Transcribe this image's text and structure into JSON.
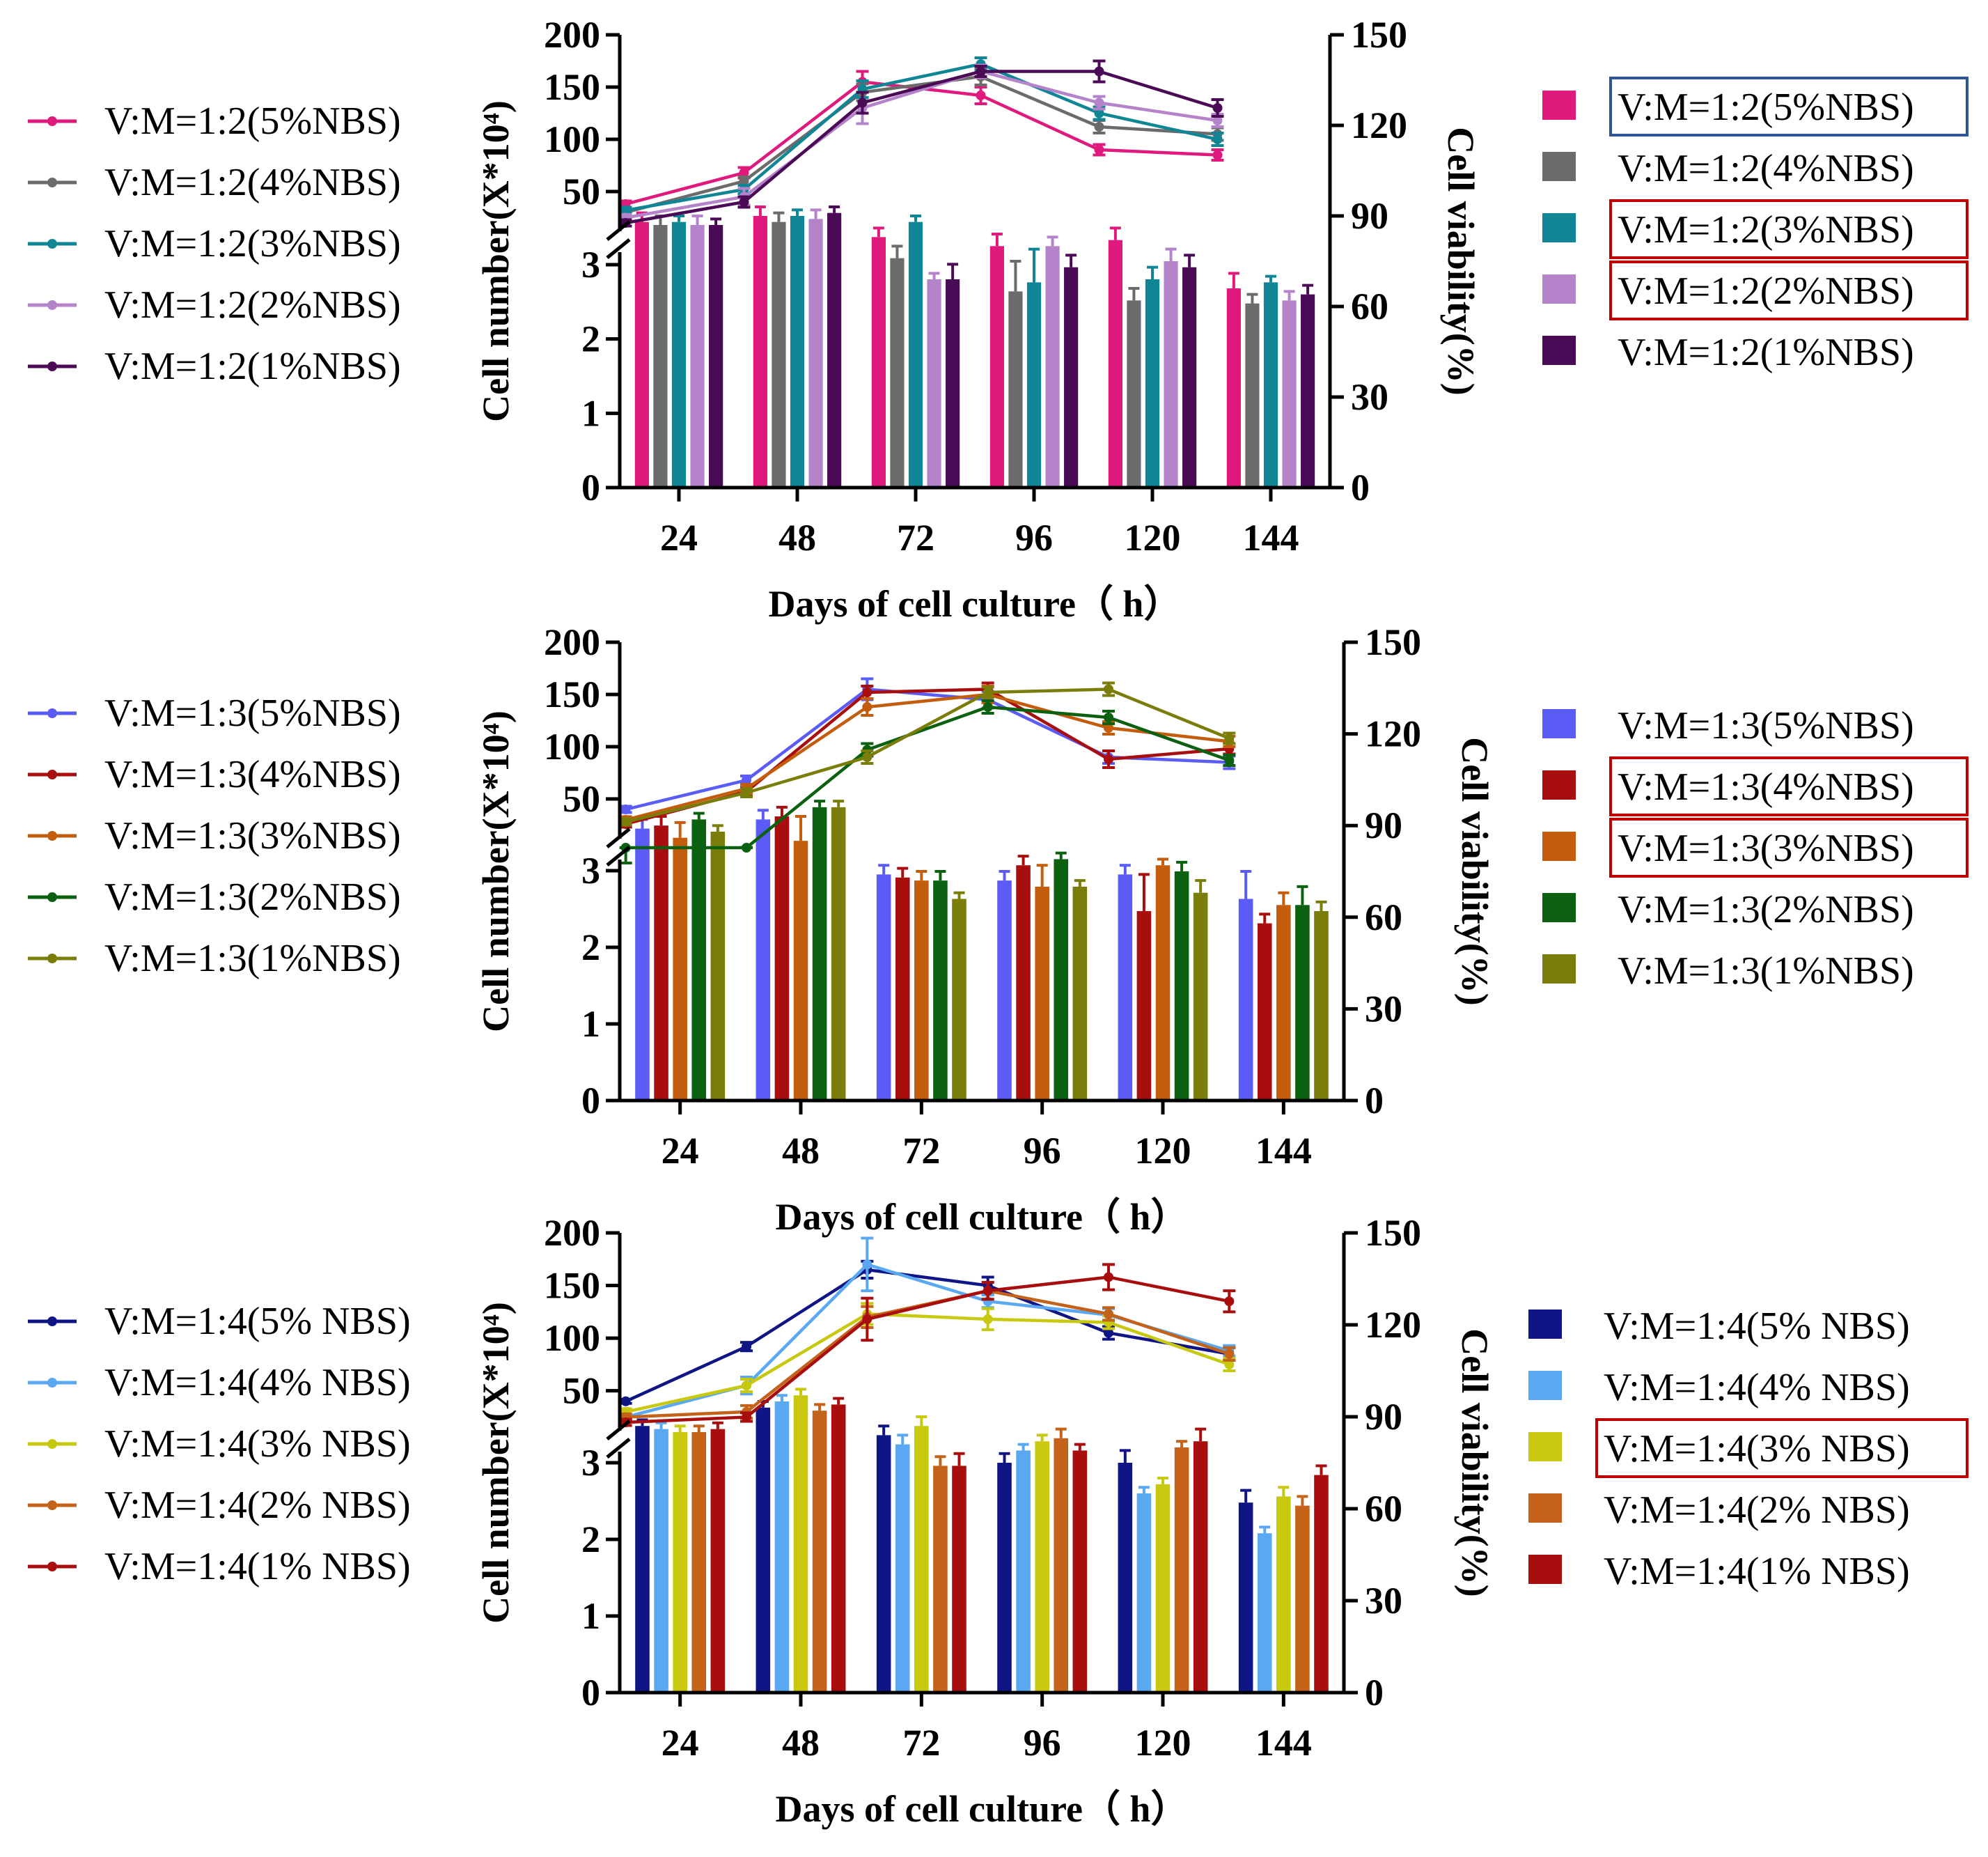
{
  "chart_data": [
    {
      "type": "bar+line",
      "title": "",
      "xlabel": "Days of cell culture（ h）",
      "ylabel_left": "Cell number(X*10⁴)",
      "ylabel_right": "Cell viability(%)",
      "categories": [
        "24",
        "48",
        "72",
        "96",
        "120",
        "144"
      ],
      "left_axis_upper_ticks": [
        "200",
        "150",
        "100",
        "50"
      ],
      "left_axis_lower_ticks": [
        "3",
        "2",
        "1",
        "0"
      ],
      "right_axis_ticks": [
        "150",
        "120",
        "90",
        "60",
        "30",
        "0"
      ],
      "line_legend": [
        "V:M=1:2(5%NBS)",
        "V:M=1:2(4%NBS)",
        "V:M=1:2(3%NBS)",
        "V:M=1:2(2%NBS)",
        "V:M=1:2(1%NBS)"
      ],
      "bar_legend": [
        "V:M=1:2(5%NBS)",
        "V:M=1:2(4%NBS)",
        "V:M=1:2(3%NBS)",
        "V:M=1:2(2%NBS)",
        "V:M=1:2(1%NBS)"
      ],
      "bar_legend_boxes": [
        {
          "index": 0,
          "color": "#2f5597"
        },
        {
          "index": 2,
          "color": "#c00000"
        },
        {
          "index": 3,
          "color": "#c00000"
        }
      ],
      "colors": [
        "#e0197d",
        "#6b6b6b",
        "#0f8596",
        "#b583c9",
        "#4b0a55"
      ],
      "line_series": [
        {
          "name": "V:M=1:2(5%NBS)",
          "values": [
            38,
            68,
            155,
            142,
            90,
            85
          ],
          "errors": [
            3,
            5,
            10,
            8,
            5,
            5
          ]
        },
        {
          "name": "V:M=1:2(4%NBS)",
          "values": [
            30,
            60,
            145,
            160,
            112,
            105
          ],
          "errors": [
            3,
            4,
            8,
            8,
            6,
            6
          ]
        },
        {
          "name": "V:M=1:2(3%NBS)",
          "values": [
            32,
            52,
            148,
            172,
            125,
            100
          ],
          "errors": [
            3,
            4,
            8,
            6,
            6,
            6
          ]
        },
        {
          "name": "V:M=1:2(2%NBS)",
          "values": [
            25,
            45,
            130,
            165,
            135,
            118
          ],
          "errors": [
            3,
            8,
            15,
            6,
            6,
            6
          ]
        },
        {
          "name": "V:M=1:2(1%NBS)",
          "values": [
            20,
            40,
            135,
            165,
            165,
            130
          ],
          "errors": [
            3,
            5,
            10,
            5,
            10,
            8
          ]
        }
      ],
      "bar_series": [
        {
          "name": "V:M=1:2(5%NBS)",
          "values": [
            88,
            90,
            83,
            80,
            82,
            66
          ],
          "errors": [
            3,
            3,
            3,
            4,
            4,
            5
          ]
        },
        {
          "name": "V:M=1:2(4%NBS)",
          "values": [
            87,
            88,
            76,
            65,
            62,
            61
          ],
          "errors": [
            3,
            3,
            4,
            10,
            4,
            3
          ]
        },
        {
          "name": "V:M=1:2(3%NBS)",
          "values": [
            88,
            90,
            88,
            68,
            69,
            68
          ],
          "errors": [
            2,
            2,
            2,
            11,
            4,
            2
          ]
        },
        {
          "name": "V:M=1:2(2%NBS)",
          "values": [
            87,
            89,
            69,
            80,
            75,
            62
          ],
          "errors": [
            3,
            3,
            2,
            3,
            4,
            3
          ]
        },
        {
          "name": "V:M=1:2(1%NBS)",
          "values": [
            87,
            91,
            69,
            73,
            73,
            64
          ],
          "errors": [
            2,
            2,
            5,
            4,
            4,
            3
          ]
        }
      ]
    },
    {
      "type": "bar+line",
      "title": "",
      "xlabel": "Days of cell culture（ h）",
      "ylabel_left": "Cell number(X*10⁴)",
      "ylabel_right": "Cell viability(%)",
      "categories": [
        "24",
        "48",
        "72",
        "96",
        "120",
        "144"
      ],
      "left_axis_upper_ticks": [
        "200",
        "150",
        "100",
        "50"
      ],
      "left_axis_lower_ticks": [
        "3",
        "2",
        "1",
        "0"
      ],
      "right_axis_ticks": [
        "150",
        "120",
        "90",
        "60",
        "30",
        "0"
      ],
      "line_legend": [
        "V:M=1:3(5%NBS)",
        "V:M=1:3(4%NBS)",
        "V:M=1:3(3%NBS)",
        "V:M=1:3(2%NBS)",
        "V:M=1:3(1%NBS)"
      ],
      "bar_legend": [
        "V:M=1:3(5%NBS)",
        "V:M=1:3(4%NBS)",
        "V:M=1:3(3%NBS)",
        "V:M=1:3(2%NBS)",
        "V:M=1:3(1%NBS)"
      ],
      "bar_legend_boxes": [
        {
          "index": 1,
          "color": "#c00000"
        },
        {
          "index": 2,
          "color": "#c00000"
        }
      ],
      "colors": [
        "#5b5bf5",
        "#a90e0e",
        "#c45c0e",
        "#0b6110",
        "#7b7d0b"
      ],
      "line_series": [
        {
          "name": "V:M=1:3(5%NBS)",
          "values": [
            40,
            68,
            155,
            145,
            90,
            85
          ],
          "errors": [
            3,
            4,
            10,
            8,
            6,
            6
          ]
        },
        {
          "name": "V:M=1:3(4%NBS)",
          "values": [
            26,
            57,
            152,
            155,
            88,
            98
          ],
          "errors": [
            3,
            4,
            6,
            6,
            8,
            5
          ]
        },
        {
          "name": "V:M=1:3(3%NBS)",
          "values": [
            30,
            60,
            138,
            150,
            118,
            105
          ],
          "errors": [
            3,
            4,
            8,
            8,
            6,
            5
          ]
        },
        {
          "name": "V:M=1:3(2%NBS)",
          "values": [
            3.3,
            3.5,
            97,
            138,
            128,
            87
          ],
          "errors": [
            0.2,
            0.2,
            6,
            6,
            6,
            5
          ]
        },
        {
          "name": "V:M=1:3(1%NBS)",
          "values": [
            28,
            56,
            90,
            152,
            155,
            108
          ],
          "errors": [
            3,
            4,
            6,
            5,
            6,
            5
          ]
        }
      ],
      "bar_series": [
        {
          "name": "V:M=1:3(5%NBS)",
          "values": [
            89,
            92,
            74,
            72,
            74,
            66
          ],
          "errors": [
            3,
            3,
            3,
            3,
            3,
            9
          ]
        },
        {
          "name": "V:M=1:3(4%NBS)",
          "values": [
            90,
            93,
            73,
            77,
            62,
            58
          ],
          "errors": [
            3,
            3,
            3,
            3,
            12,
            3
          ]
        },
        {
          "name": "V:M=1:3(3%NBS)",
          "values": [
            86,
            85,
            72,
            70,
            77,
            64
          ],
          "errors": [
            5,
            8,
            3,
            7,
            2,
            4
          ]
        },
        {
          "name": "V:M=1:3(2%NBS)",
          "values": [
            92,
            96,
            72,
            79,
            75,
            64
          ],
          "errors": [
            2,
            2,
            3,
            2,
            3,
            6
          ]
        },
        {
          "name": "V:M=1:3(1%NBS)",
          "values": [
            88,
            96,
            66,
            70,
            68,
            62
          ],
          "errors": [
            2,
            2,
            2,
            2,
            4,
            3
          ]
        }
      ]
    },
    {
      "type": "bar+line",
      "title": "",
      "xlabel": "Days of cell culture（ h）",
      "ylabel_left": "Cell number(X*10⁴)",
      "ylabel_right": "Cell viability(%)",
      "categories": [
        "24",
        "48",
        "72",
        "96",
        "120",
        "144"
      ],
      "left_axis_upper_ticks": [
        "200",
        "150",
        "100",
        "50"
      ],
      "left_axis_lower_ticks": [
        "3",
        "2",
        "1",
        "0"
      ],
      "right_axis_ticks": [
        "150",
        "120",
        "90",
        "60",
        "30",
        "0"
      ],
      "line_legend": [
        "V:M=1:4(5% NBS)",
        "V:M=1:4(4% NBS)",
        "V:M=1:4(3% NBS)",
        "V:M=1:4(2% NBS)",
        "V:M=1:4(1% NBS)"
      ],
      "bar_legend": [
        "V:M=1:4(5% NBS)",
        "V:M=1:4(4% NBS)",
        "V:M=1:4(3% NBS)",
        "V:M=1:4(2% NBS)",
        "V:M=1:4(1% NBS)"
      ],
      "bar_legend_boxes": [
        {
          "index": 2,
          "color": "#c00000"
        }
      ],
      "colors": [
        "#101586",
        "#5aa8f2",
        "#c8c80e",
        "#c4621a",
        "#a90e0e"
      ],
      "line_series": [
        {
          "name": "V:M=1:4(5% NBS)",
          "values": [
            40,
            92,
            165,
            150,
            105,
            85
          ],
          "errors": [
            2,
            4,
            8,
            8,
            6,
            6
          ]
        },
        {
          "name": "V:M=1:4(4% NBS)",
          "values": [
            25,
            55,
            170,
            135,
            122,
            88
          ],
          "errors": [
            3,
            8,
            25,
            6,
            6,
            5
          ]
        },
        {
          "name": "V:M=1:4(3% NBS)",
          "values": [
            30,
            55,
            123,
            118,
            115,
            75
          ],
          "errors": [
            3,
            6,
            10,
            10,
            6,
            6
          ]
        },
        {
          "name": "V:M=1:4(2% NBS)",
          "values": [
            25,
            30,
            120,
            145,
            123,
            85
          ],
          "errors": [
            3,
            6,
            10,
            8,
            6,
            6
          ]
        },
        {
          "name": "V:M=1:4(1% NBS)",
          "values": [
            20,
            25,
            118,
            145,
            158,
            135
          ],
          "errors": [
            3,
            4,
            20,
            8,
            12,
            10
          ]
        }
      ],
      "bar_series": [
        {
          "name": "V:M=1:4(5% NBS)",
          "values": [
            87,
            93,
            84,
            75,
            75,
            62
          ],
          "errors": [
            2,
            2,
            3,
            3,
            4,
            4
          ]
        },
        {
          "name": "V:M=1:4(4% NBS)",
          "values": [
            86,
            95,
            81,
            79,
            65,
            52
          ],
          "errors": [
            2,
            2,
            3,
            2,
            2,
            2
          ]
        },
        {
          "name": "V:M=1:4(3% NBS)",
          "values": [
            85,
            97,
            87,
            82,
            68,
            64
          ],
          "errors": [
            2,
            2,
            3,
            2,
            2,
            3
          ]
        },
        {
          "name": "V:M=1:4(2% NBS)",
          "values": [
            85,
            92,
            74,
            83,
            80,
            61
          ],
          "errors": [
            2,
            2,
            3,
            3,
            2,
            3
          ]
        },
        {
          "name": "V:M=1:4(1% NBS)",
          "values": [
            86,
            94,
            74,
            79,
            82,
            71
          ],
          "errors": [
            2,
            2,
            4,
            2,
            4,
            3
          ]
        }
      ]
    }
  ]
}
